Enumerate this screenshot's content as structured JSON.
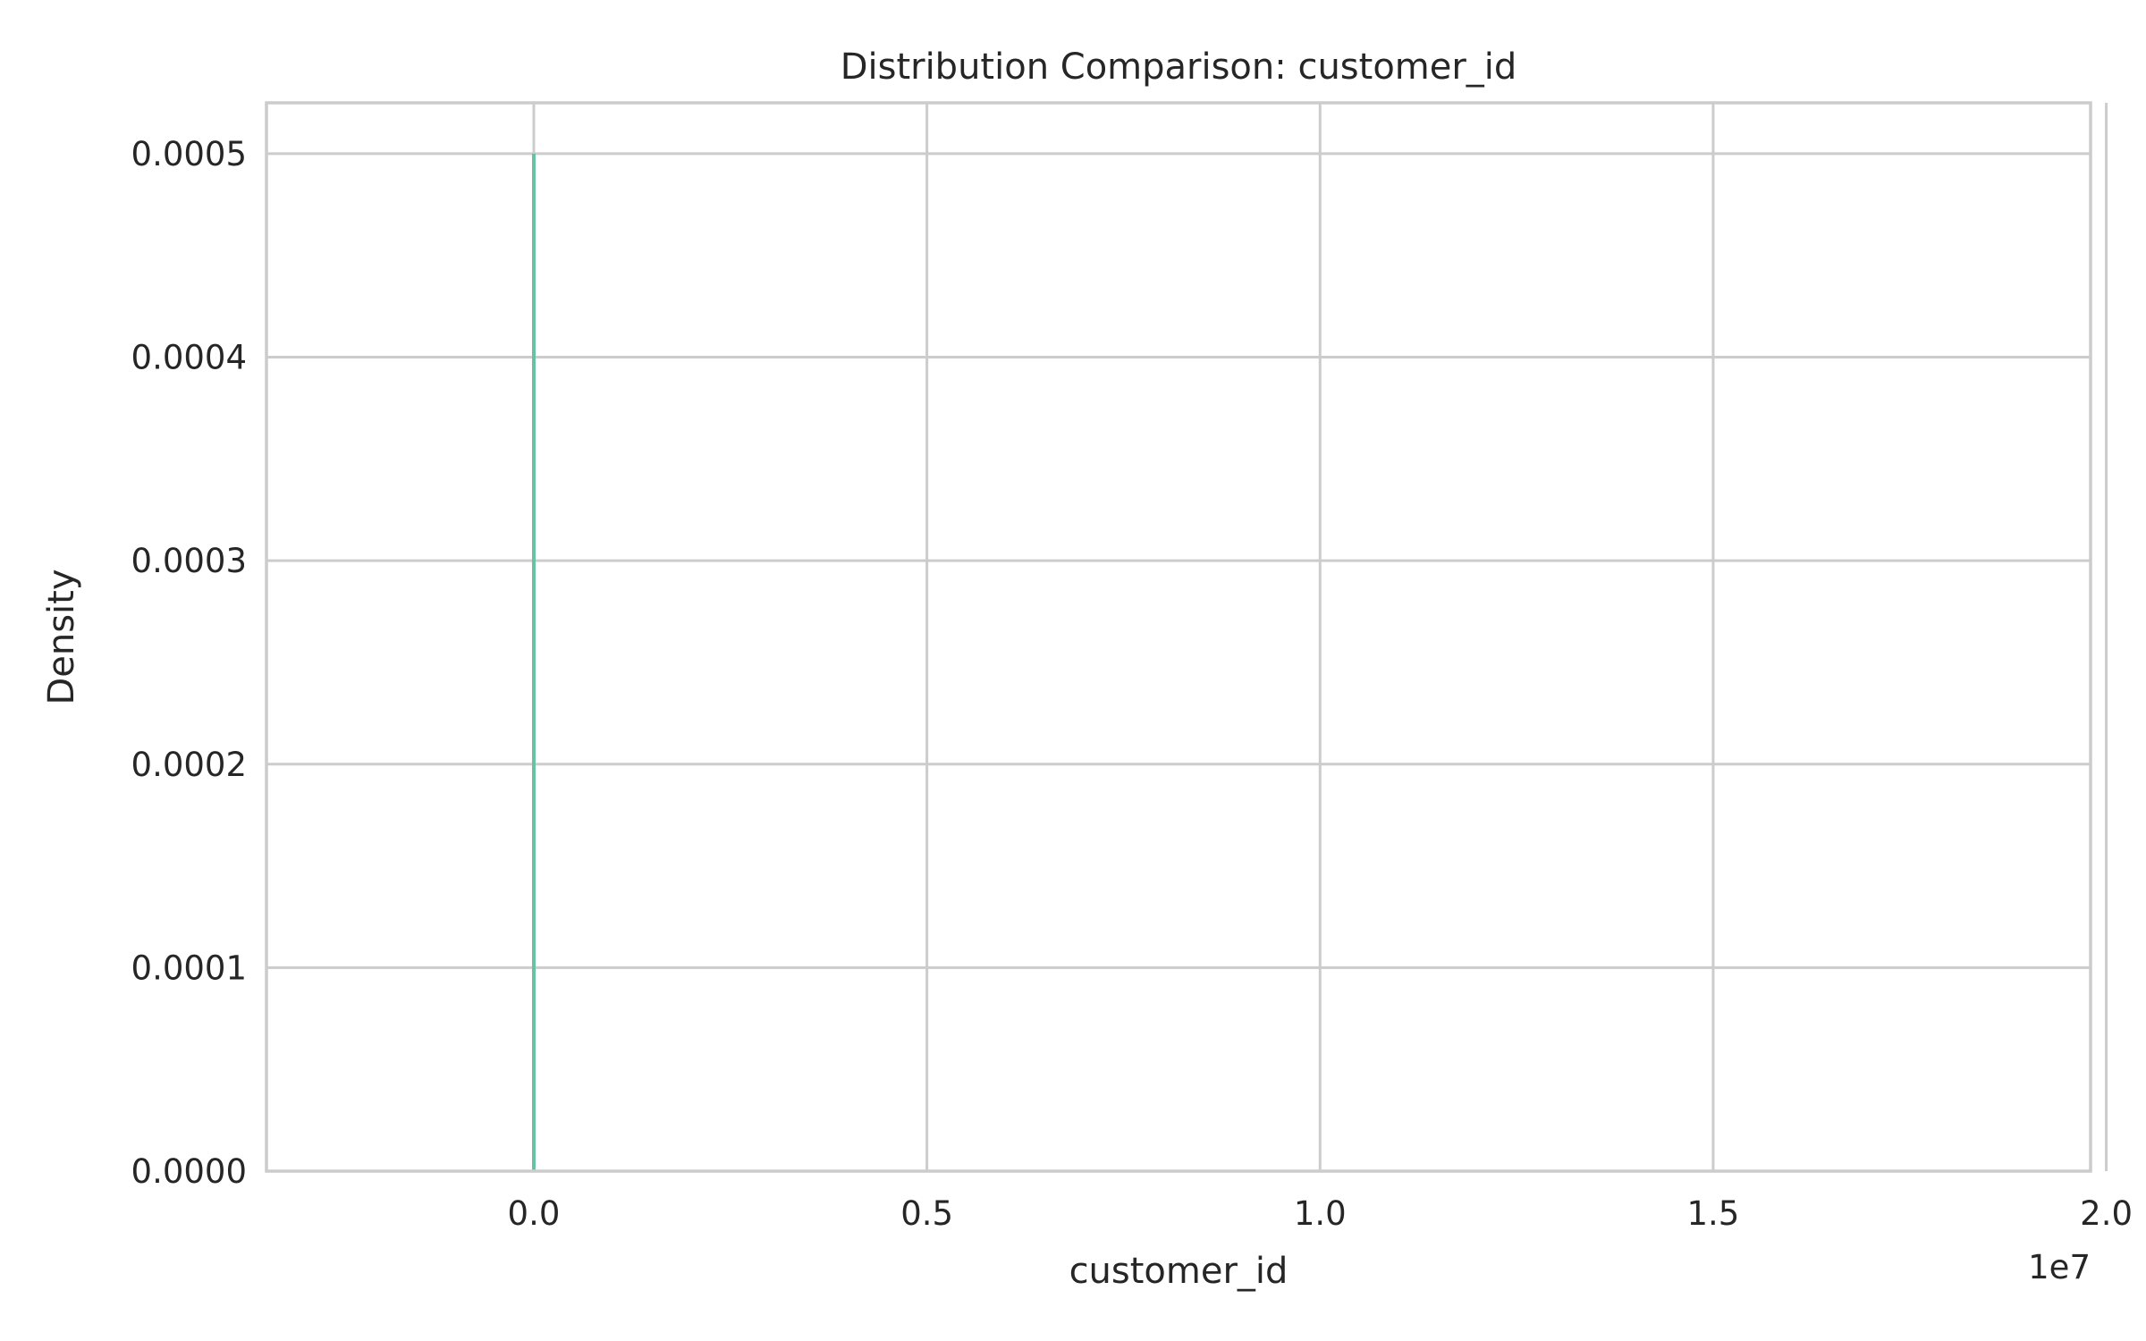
{
  "chart_data": {
    "type": "line",
    "title": "Distribution Comparison: customer_id",
    "xlabel": "customer_id",
    "ylabel": "Density",
    "x_offset_label": "1e7",
    "xlim": [
      -0.34,
      1.98
    ],
    "ylim": [
      0,
      0.000525
    ],
    "x_ticks": [
      0.0,
      0.5,
      1.0,
      1.5,
      2.0
    ],
    "x_tick_labels": [
      "0.0",
      "0.5",
      "1.0",
      "1.5",
      "2.0"
    ],
    "y_ticks": [
      0.0,
      0.0001,
      0.0002,
      0.0003,
      0.0004,
      0.0005
    ],
    "y_tick_labels": [
      "0.0000",
      "0.0001",
      "0.0002",
      "0.0003",
      "0.0004",
      "0.0005"
    ],
    "grid": true,
    "series": [
      {
        "color": "#66c2a5",
        "x": [
          0.0,
          0.0
        ],
        "y": [
          0.0,
          0.0005
        ]
      }
    ]
  }
}
